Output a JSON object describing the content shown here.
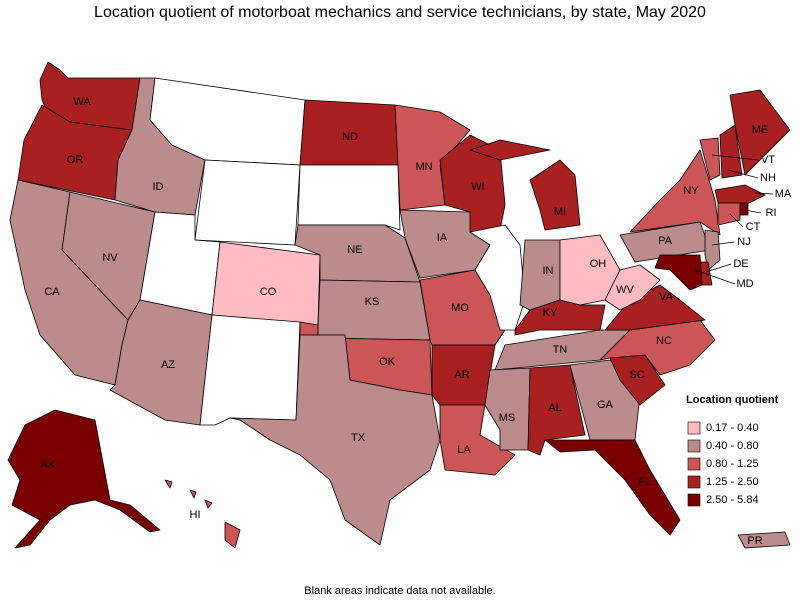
{
  "title": "Location quotient of motorboat mechanics and service technicians, by state, May 2020",
  "legend": {
    "title": "Location quotient",
    "items": [
      {
        "label": "0.17 - 0.40",
        "color": "#ffbbc2"
      },
      {
        "label": "0.40 - 0.80",
        "color": "#bc8b8b"
      },
      {
        "label": "0.80 - 1.25",
        "color": "#cc5555"
      },
      {
        "label": "1.25 - 2.50",
        "color": "#a82020"
      },
      {
        "label": "2.50 - 5.84",
        "color": "#7a0000"
      }
    ]
  },
  "note": "Blank areas indicate data not available.",
  "states": [
    {
      "abbr": "WA",
      "color": "#a82020"
    },
    {
      "abbr": "OR",
      "color": "#a82020"
    },
    {
      "abbr": "CA",
      "color": "#bc8b8b"
    },
    {
      "abbr": "NV",
      "color": "#bc8b8b"
    },
    {
      "abbr": "ID",
      "color": "#bc8b8b"
    },
    {
      "abbr": null,
      "color": "#ffffff"
    },
    {
      "abbr": null,
      "color": "#ffffff"
    },
    {
      "abbr": null,
      "color": "#ffffff"
    },
    {
      "abbr": "CO",
      "color": "#ffbbc2"
    },
    {
      "abbr": "AZ",
      "color": "#bc8b8b"
    },
    {
      "abbr": null,
      "color": "#ffffff"
    },
    {
      "abbr": "ND",
      "color": "#a82020"
    },
    {
      "abbr": null,
      "color": "#ffffff"
    },
    {
      "abbr": "NE",
      "color": "#bc8b8b"
    },
    {
      "abbr": "KS",
      "color": "#bc8b8b"
    },
    {
      "abbr": "OK",
      "color": "#cc5555"
    },
    {
      "abbr": "TX",
      "color": "#bc8b8b"
    },
    {
      "abbr": "MN",
      "color": "#cc5555"
    },
    {
      "abbr": "IA",
      "color": "#bc8b8b"
    },
    {
      "abbr": "MO",
      "color": "#cc5555"
    },
    {
      "abbr": "AR",
      "color": "#a82020"
    },
    {
      "abbr": "LA",
      "color": "#cc5555"
    },
    {
      "abbr": "WI",
      "color": "#a82020"
    },
    {
      "abbr": null,
      "color": "#ffffff"
    },
    {
      "abbr": "MI",
      "color": "#a82020"
    },
    {
      "abbr": "IN",
      "color": "#bc8b8b"
    },
    {
      "abbr": "OH",
      "color": "#ffbbc2"
    },
    {
      "abbr": "KY",
      "color": "#a82020"
    },
    {
      "abbr": "TN",
      "color": "#bc8b8b"
    },
    {
      "abbr": "MS",
      "color": "#bc8b8b"
    },
    {
      "abbr": "AL",
      "color": "#a82020"
    },
    {
      "abbr": "GA",
      "color": "#bc8b8b"
    },
    {
      "abbr": "FL",
      "color": "#7a0000"
    },
    {
      "abbr": "SC",
      "color": "#a82020"
    },
    {
      "abbr": "NC",
      "color": "#cc5555"
    },
    {
      "abbr": "VA",
      "color": "#a82020"
    },
    {
      "abbr": "WV",
      "color": "#ffbbc2"
    },
    {
      "abbr": "PA",
      "color": "#bc8b8b"
    },
    {
      "abbr": "NY",
      "color": "#cc5555"
    },
    {
      "abbr": "VT",
      "color": "#cc5555"
    },
    {
      "abbr": "NH",
      "color": "#a82020"
    },
    {
      "abbr": "ME",
      "color": "#a82020"
    },
    {
      "abbr": "MA",
      "color": "#a82020"
    },
    {
      "abbr": "CT",
      "color": "#cc5555"
    },
    {
      "abbr": "RI",
      "color": "#7a0000"
    },
    {
      "abbr": "NJ",
      "color": "#bc8b8b"
    },
    {
      "abbr": "DE",
      "color": "#a82020"
    },
    {
      "abbr": "MD",
      "color": "#7a0000"
    },
    {
      "abbr": "AK",
      "color": "#7a0000"
    },
    {
      "abbr": "HI",
      "color": "#cc5555"
    },
    {
      "abbr": "PR",
      "color": "#bc8b8b"
    }
  ]
}
